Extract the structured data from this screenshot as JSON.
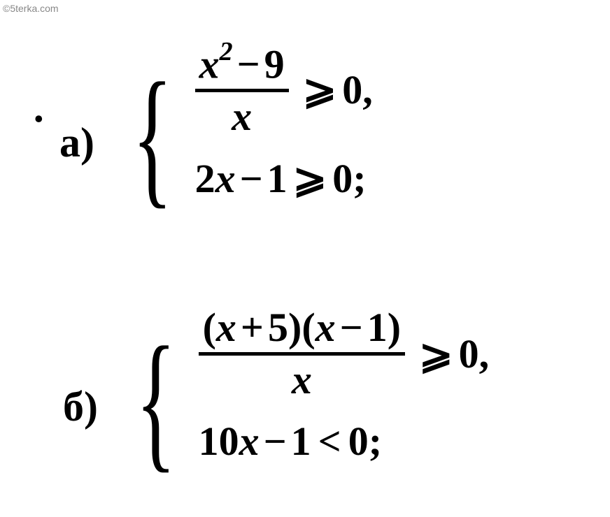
{
  "watermark": "©5terka.com",
  "problems": {
    "a": {
      "label": "а)",
      "leading_dot": ".",
      "ineq1": {
        "numerator_x": "x",
        "numerator_sup": "2",
        "numerator_op": "−",
        "numerator_const": "9",
        "denominator": "x",
        "relation": "⩾",
        "rhs": "0",
        "terminator": ","
      },
      "ineq2": {
        "lhs_coef": "2",
        "lhs_var": "x",
        "lhs_op": "−",
        "lhs_const": "1",
        "relation": "⩾",
        "rhs": "0",
        "terminator": ";"
      }
    },
    "b": {
      "label": "б)",
      "ineq1": {
        "num_paren_open1": "(",
        "num_x1": "x",
        "num_op1": "+",
        "num_c1": "5",
        "num_paren_close1": ")",
        "num_paren_open2": "(",
        "num_x2": "x",
        "num_op2": "−",
        "num_c2": "1",
        "num_paren_close2": ")",
        "denominator": "x",
        "relation": "⩾",
        "rhs": "0",
        "terminator": ","
      },
      "ineq2": {
        "lhs_coef": "10",
        "lhs_var": "x",
        "lhs_op": "−",
        "lhs_const": "1",
        "relation": "<",
        "rhs": "0",
        "terminator": ";"
      }
    }
  },
  "colors": {
    "text": "#000000",
    "background": "#ffffff",
    "watermark": "#888888"
  },
  "typography": {
    "math_font": "Times New Roman",
    "math_size": 58,
    "math_weight": "bold",
    "math_style": "italic"
  }
}
